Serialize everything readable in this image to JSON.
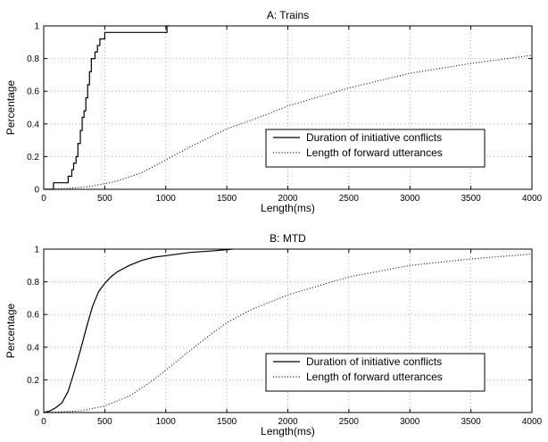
{
  "chart_data": [
    {
      "type": "line",
      "title": "A: Trains",
      "xlabel": "Length(ms)",
      "ylabel": "Percentage",
      "xlim": [
        0,
        4000
      ],
      "ylim": [
        0,
        1
      ],
      "xticks": [
        0,
        500,
        1000,
        1500,
        2000,
        2500,
        3000,
        3500,
        4000
      ],
      "yticks": [
        0,
        0.2,
        0.4,
        0.6,
        0.8,
        1
      ],
      "xtick_labels": [
        "0",
        "500",
        "1000",
        "1500",
        "2000",
        "2500",
        "3000",
        "3500",
        "4000"
      ],
      "ytick_labels": [
        "0",
        "0.2",
        "0.4",
        "0.6",
        "0.8",
        "1"
      ],
      "grid": true,
      "legend_position": "center-right",
      "series": [
        {
          "name": "Duration of initiative conflicts",
          "style": "solid",
          "color": "#000000",
          "step": true,
          "points": [
            [
              0,
              0
            ],
            [
              80,
              0
            ],
            [
              80,
              0.04
            ],
            [
              200,
              0.04
            ],
            [
              200,
              0.08
            ],
            [
              230,
              0.08
            ],
            [
              230,
              0.12
            ],
            [
              245,
              0.12
            ],
            [
              245,
              0.16
            ],
            [
              265,
              0.16
            ],
            [
              265,
              0.2
            ],
            [
              280,
              0.2
            ],
            [
              280,
              0.28
            ],
            [
              300,
              0.28
            ],
            [
              300,
              0.36
            ],
            [
              315,
              0.36
            ],
            [
              315,
              0.44
            ],
            [
              330,
              0.44
            ],
            [
              330,
              0.48
            ],
            [
              345,
              0.48
            ],
            [
              345,
              0.56
            ],
            [
              360,
              0.56
            ],
            [
              360,
              0.64
            ],
            [
              375,
              0.64
            ],
            [
              375,
              0.72
            ],
            [
              390,
              0.72
            ],
            [
              390,
              0.8
            ],
            [
              420,
              0.8
            ],
            [
              420,
              0.84
            ],
            [
              440,
              0.84
            ],
            [
              440,
              0.88
            ],
            [
              460,
              0.88
            ],
            [
              460,
              0.92
            ],
            [
              500,
              0.92
            ],
            [
              500,
              0.96
            ],
            [
              1010,
              0.96
            ],
            [
              1010,
              1
            ],
            [
              1030,
              1
            ]
          ]
        },
        {
          "name": "Length of forward utterances",
          "style": "dotted",
          "color": "#000000",
          "step": false,
          "points": [
            [
              0,
              0
            ],
            [
              200,
              0.005
            ],
            [
              400,
              0.02
            ],
            [
              600,
              0.05
            ],
            [
              800,
              0.1
            ],
            [
              1000,
              0.18
            ],
            [
              1200,
              0.26
            ],
            [
              1500,
              0.37
            ],
            [
              1800,
              0.45
            ],
            [
              2000,
              0.51
            ],
            [
              2500,
              0.62
            ],
            [
              3000,
              0.71
            ],
            [
              3500,
              0.77
            ],
            [
              4000,
              0.82
            ]
          ]
        }
      ]
    },
    {
      "type": "line",
      "title": "B: MTD",
      "xlabel": "Length(ms)",
      "ylabel": "Percentage",
      "xlim": [
        0,
        4000
      ],
      "ylim": [
        0,
        1
      ],
      "xticks": [
        0,
        500,
        1000,
        1500,
        2000,
        2500,
        3000,
        3500,
        4000
      ],
      "yticks": [
        0,
        0.2,
        0.4,
        0.6,
        0.8,
        1
      ],
      "xtick_labels": [
        "0",
        "500",
        "1000",
        "1500",
        "2000",
        "2500",
        "3000",
        "3500",
        "4000"
      ],
      "ytick_labels": [
        "0",
        "0.2",
        "0.4",
        "0.6",
        "0.8",
        "1"
      ],
      "grid": true,
      "legend_position": "lower-right",
      "series": [
        {
          "name": "Duration of initiative conflicts",
          "style": "solid",
          "color": "#000000",
          "step": false,
          "points": [
            [
              0,
              0
            ],
            [
              50,
              0.01
            ],
            [
              100,
              0.03
            ],
            [
              150,
              0.06
            ],
            [
              200,
              0.13
            ],
            [
              250,
              0.25
            ],
            [
              300,
              0.38
            ],
            [
              350,
              0.52
            ],
            [
              400,
              0.65
            ],
            [
              450,
              0.74
            ],
            [
              500,
              0.79
            ],
            [
              550,
              0.83
            ],
            [
              600,
              0.86
            ],
            [
              700,
              0.9
            ],
            [
              800,
              0.93
            ],
            [
              900,
              0.95
            ],
            [
              1000,
              0.96
            ],
            [
              1200,
              0.98
            ],
            [
              1400,
              0.99
            ],
            [
              1550,
              1
            ]
          ]
        },
        {
          "name": "Length of forward utterances",
          "style": "dotted",
          "color": "#000000",
          "step": false,
          "points": [
            [
              0,
              0
            ],
            [
              300,
              0.01
            ],
            [
              500,
              0.04
            ],
            [
              700,
              0.1
            ],
            [
              900,
              0.2
            ],
            [
              1100,
              0.32
            ],
            [
              1300,
              0.44
            ],
            [
              1500,
              0.55
            ],
            [
              1700,
              0.63
            ],
            [
              2000,
              0.72
            ],
            [
              2500,
              0.83
            ],
            [
              3000,
              0.9
            ],
            [
              3500,
              0.94
            ],
            [
              4000,
              0.97
            ]
          ]
        }
      ]
    }
  ]
}
